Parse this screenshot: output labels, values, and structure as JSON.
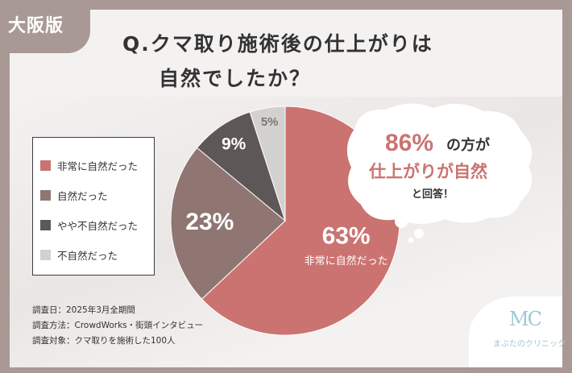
{
  "region_badge": "大阪版",
  "question": {
    "line1": "Q.クマ取り施術後の仕上がりは",
    "line2": "自然でしたか？"
  },
  "chart_data": {
    "type": "pie",
    "slices": [
      {
        "label": "非常に自然だった",
        "value": 63,
        "display": "63%",
        "color": "#cb7371",
        "text_color": "#ffffff"
      },
      {
        "label": "自然だった",
        "value": 23,
        "display": "23%",
        "color": "#8f7672",
        "text_color": "#ffffff"
      },
      {
        "label": "やや不自然だった",
        "value": 9,
        "display": "9%",
        "color": "#5e5758",
        "text_color": "#ffffff"
      },
      {
        "label": "不自然だった",
        "value": 5,
        "display": "5%",
        "color": "#d3d1d0",
        "text_color": "#7d7675"
      }
    ],
    "inline_label": "非常に自然だった"
  },
  "legend": [
    {
      "label": "非常に自然だった",
      "color": "#cb7371"
    },
    {
      "label": "自然だった",
      "color": "#8f7672"
    },
    {
      "label": "やや不自然だった",
      "color": "#5e5758"
    },
    {
      "label": "不自然だった",
      "color": "#d3d1d0"
    }
  ],
  "callout": {
    "percent": "86%",
    "line1_suffix": "の方が",
    "line2": "仕上がりが自然",
    "line3": "と回答！",
    "accent_color": "#cb7371"
  },
  "survey": {
    "date": "調査日：2025年3月全期間",
    "method": "調査方法：CrowdWorks・街頭インタビュー",
    "target": "調査対象：クマ取りを施術した100人"
  },
  "logo": {
    "mark": "MC",
    "name": "まぶたのクリニック"
  }
}
